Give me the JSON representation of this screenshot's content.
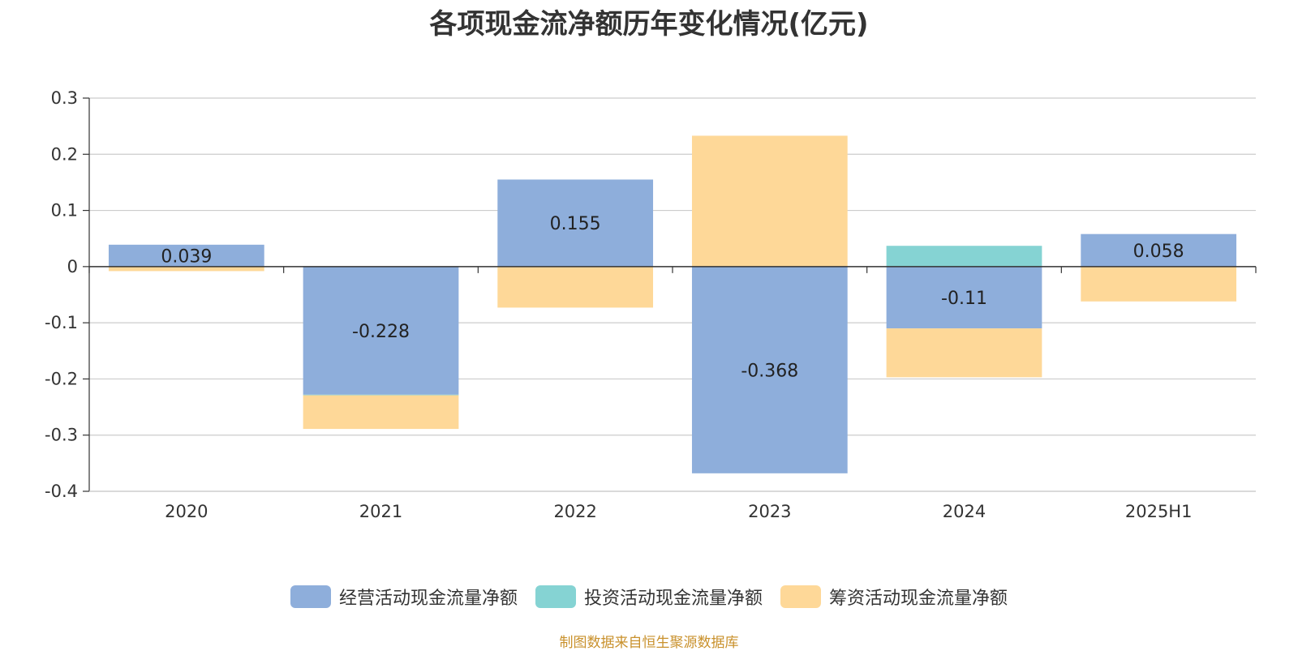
{
  "chart_data": {
    "type": "bar",
    "stacked": true,
    "title": "各项现金流净额历年变化情况(亿元)",
    "categories": [
      "2020",
      "2021",
      "2022",
      "2023",
      "2024",
      "2025H1"
    ],
    "series": [
      {
        "name": "经营活动现金流量净额",
        "color": "#8eaedb",
        "values": [
          0.039,
          -0.228,
          0.155,
          -0.368,
          -0.11,
          0.058
        ],
        "labels": [
          "0.039",
          "-0.228",
          "0.155",
          "-0.368",
          "-0.11",
          "0.058"
        ]
      },
      {
        "name": "投资活动现金流量净额",
        "color": "#85d3d3",
        "values": [
          0.0,
          -0.001,
          -0.001,
          0.0,
          0.037,
          0.0
        ],
        "labels": [
          "",
          "",
          "",
          "",
          "",
          ""
        ]
      },
      {
        "name": "筹资活动现金流量净额",
        "color": "#fed898",
        "values": [
          -0.008,
          -0.06,
          -0.072,
          0.233,
          -0.087,
          -0.062
        ],
        "labels": [
          "",
          "",
          "",
          "",
          "",
          ""
        ]
      }
    ],
    "yticks": [
      "0.3",
      "0.2",
      "0.1",
      "0",
      "-0.1",
      "-0.2",
      "-0.3",
      "-0.4"
    ],
    "ylim": [
      -0.4,
      0.3
    ],
    "grid": true,
    "legend_position": "bottom"
  },
  "source": "制图数据来自恒生聚源数据库"
}
